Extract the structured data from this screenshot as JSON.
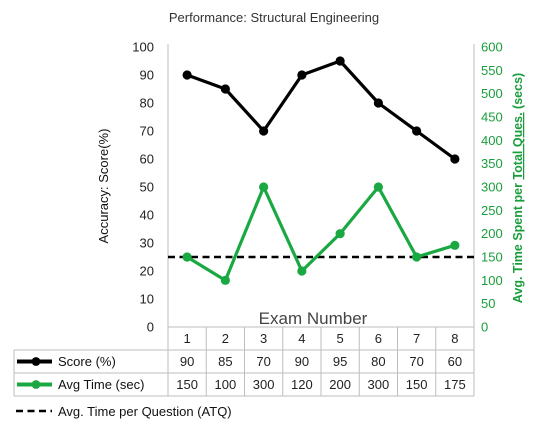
{
  "chart_data": {
    "type": "line",
    "title": "Performance: Structural Engineering",
    "xlabel": "Exam Number",
    "ylabel_left": "Accuracy: Score(%)",
    "ylabel_right_parts": [
      "Avg. Time Spent per ",
      "Total Ques.",
      " (secs)"
    ],
    "categories": [
      1,
      2,
      3,
      4,
      5,
      6,
      7,
      8
    ],
    "ylim_left": [
      0,
      100
    ],
    "yticks_left": [
      0,
      10,
      20,
      30,
      40,
      50,
      60,
      70,
      80,
      90,
      100
    ],
    "ylim_right": [
      0,
      600
    ],
    "yticks_right": [
      0,
      50,
      100,
      150,
      200,
      250,
      300,
      350,
      400,
      450,
      500,
      550,
      600
    ],
    "series": [
      {
        "name": "Score (%)",
        "axis": "left",
        "color": "#000000",
        "values": [
          90,
          85,
          70,
          90,
          95,
          80,
          70,
          60
        ]
      },
      {
        "name": "Avg Time (sec)",
        "axis": "right",
        "color": "#1aa843",
        "values": [
          150,
          100,
          300,
          120,
          200,
          300,
          150,
          175
        ]
      }
    ],
    "reference_line": {
      "name": "Avg. Time per Question (ATQ)",
      "axis": "right",
      "value": 150,
      "style": "dashed",
      "color": "#000000"
    },
    "grid": false,
    "data_table": true
  }
}
